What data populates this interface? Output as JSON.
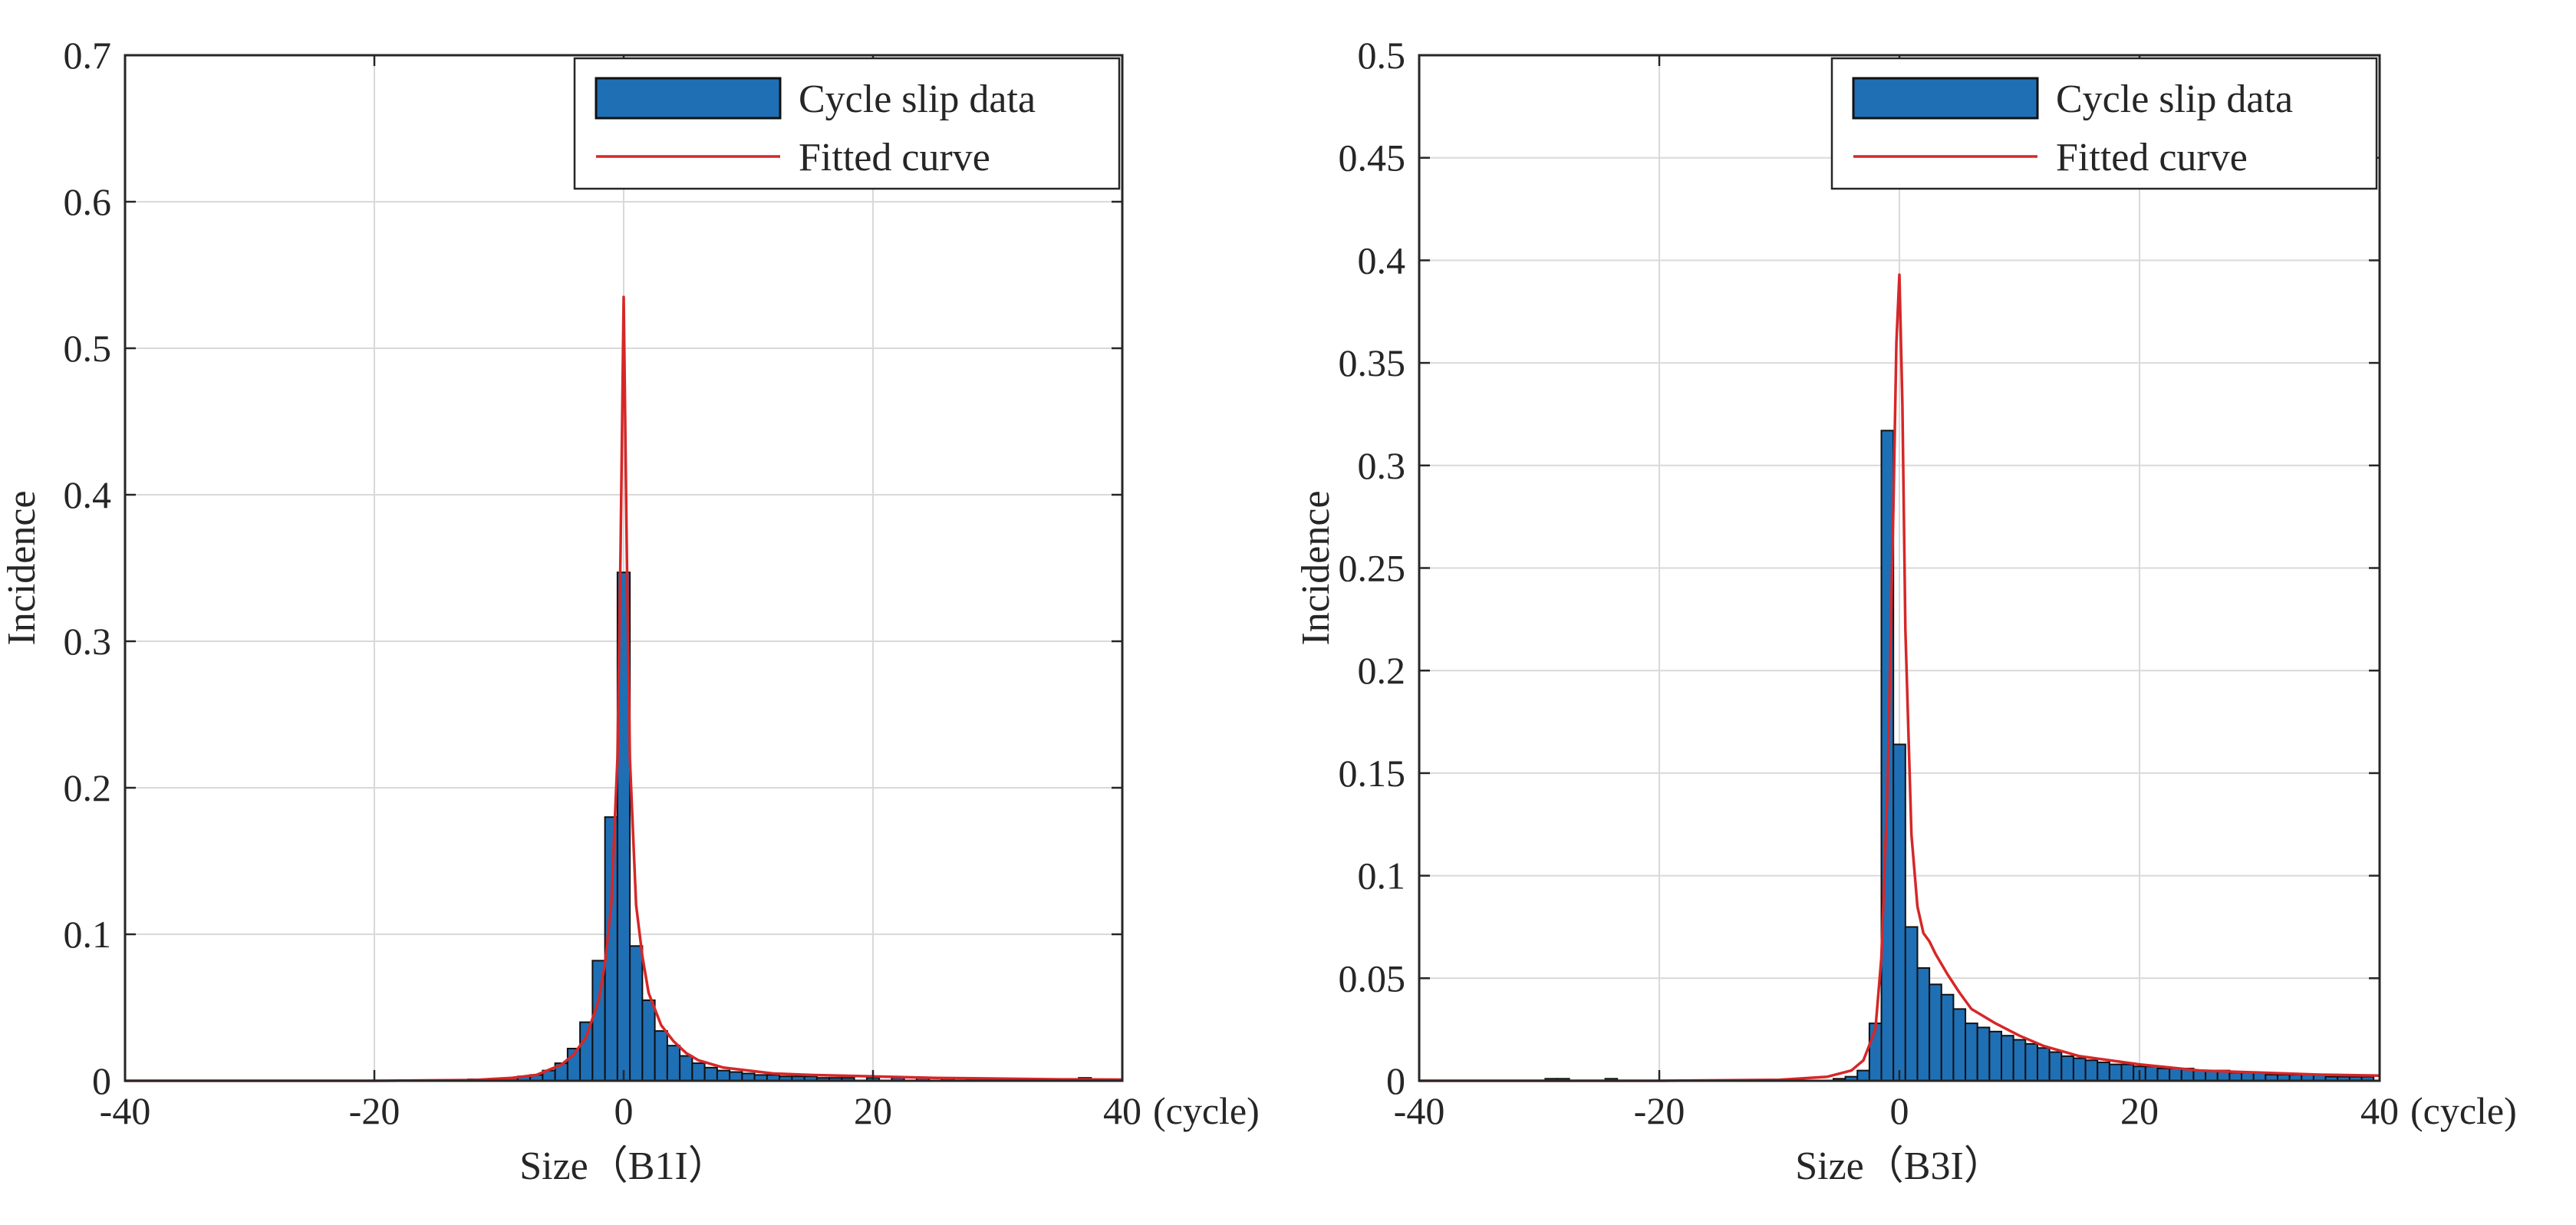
{
  "colors": {
    "bar_fill": "#1f6fb5",
    "bar_edge": "#111111",
    "fit_line": "#d62728",
    "axis": "#262626",
    "grid": "#d9d9d9"
  },
  "chart_data": [
    {
      "type": "bar",
      "title": "",
      "xlabel": "Size（B1I）",
      "ylabel": "Incidence",
      "x_unit": "(cycle)",
      "xlim": [
        -40,
        40
      ],
      "ylim": [
        0,
        0.7
      ],
      "xticks": [
        -40,
        -20,
        0,
        20,
        40
      ],
      "yticks": [
        0,
        0.1,
        0.2,
        0.3,
        0.4,
        0.5,
        0.6,
        0.7
      ],
      "xtick_labels": [
        "-40",
        "-20",
        "0",
        "20",
        "40"
      ],
      "ytick_labels": [
        "0",
        "0.1",
        "0.2",
        "0.3",
        "0.4",
        "0.5",
        "0.6",
        "0.7"
      ],
      "grid": true,
      "legend_position": "top-right",
      "bar_width": 1,
      "series": [
        {
          "name": "Cycle slip data",
          "type": "bar",
          "x": [
            -12,
            -10,
            -9,
            -8,
            -7,
            -6,
            -5,
            -4,
            -3,
            -2,
            -1,
            0,
            1,
            2,
            3,
            4,
            5,
            6,
            7,
            8,
            9,
            10,
            11,
            12,
            13,
            14,
            15,
            16,
            17,
            18,
            20,
            22,
            24,
            26,
            28,
            30,
            37
          ],
          "values": [
            0.001,
            0.001,
            0.002,
            0.003,
            0.004,
            0.007,
            0.012,
            0.022,
            0.04,
            0.082,
            0.18,
            0.347,
            0.092,
            0.055,
            0.034,
            0.024,
            0.017,
            0.012,
            0.009,
            0.007,
            0.006,
            0.005,
            0.004,
            0.004,
            0.003,
            0.003,
            0.003,
            0.002,
            0.002,
            0.002,
            0.002,
            0.002,
            0.002,
            0.002,
            0.001,
            0.001,
            0.002
          ]
        },
        {
          "name": "Fitted curve",
          "type": "line",
          "x": [
            -40,
            -20,
            -12,
            -9,
            -7,
            -5,
            -4,
            -3,
            -2,
            -1.5,
            -1,
            -0.5,
            -0.25,
            0,
            0.25,
            0.5,
            1,
            1.5,
            2,
            3,
            4,
            5,
            6,
            8,
            10,
            12,
            15,
            20,
            25,
            30,
            35,
            40
          ],
          "values": [
            0,
            0,
            0.0005,
            0.002,
            0.004,
            0.011,
            0.018,
            0.03,
            0.055,
            0.08,
            0.12,
            0.22,
            0.36,
            0.535,
            0.36,
            0.22,
            0.12,
            0.085,
            0.06,
            0.038,
            0.027,
            0.019,
            0.014,
            0.009,
            0.007,
            0.005,
            0.004,
            0.003,
            0.002,
            0.0015,
            0.001,
            0.0008
          ]
        }
      ]
    },
    {
      "type": "bar",
      "title": "",
      "xlabel": "Size（B3I）",
      "ylabel": "Incidence",
      "x_unit": "(cycle)",
      "xlim": [
        -40,
        40
      ],
      "ylim": [
        0,
        0.5
      ],
      "xticks": [
        -40,
        -20,
        0,
        20,
        40
      ],
      "yticks": [
        0,
        0.05,
        0.1,
        0.15,
        0.2,
        0.25,
        0.3,
        0.35,
        0.4,
        0.45,
        0.5
      ],
      "xtick_labels": [
        "-40",
        "-20",
        "0",
        "20",
        "40"
      ],
      "ytick_labels": [
        "0",
        "0.05",
        "0.1",
        "0.15",
        "0.2",
        "0.25",
        "0.3",
        "0.35",
        "0.4",
        "0.45",
        "0.5"
      ],
      "grid": true,
      "legend_position": "top-right",
      "bar_width": 1,
      "series": [
        {
          "name": "Cycle slip data",
          "type": "bar",
          "x": [
            -29,
            -28,
            -24,
            -5,
            -4,
            -3,
            -2,
            -1,
            0,
            1,
            2,
            3,
            4,
            5,
            6,
            7,
            8,
            9,
            10,
            11,
            12,
            13,
            14,
            15,
            16,
            17,
            18,
            19,
            20,
            21,
            22,
            23,
            24,
            25,
            26,
            27,
            28,
            29,
            30,
            31,
            32,
            33,
            34,
            35,
            36,
            37,
            38,
            39
          ],
          "values": [
            0.001,
            0.001,
            0.001,
            0.001,
            0.002,
            0.005,
            0.028,
            0.317,
            0.164,
            0.075,
            0.055,
            0.047,
            0.042,
            0.035,
            0.028,
            0.026,
            0.024,
            0.022,
            0.02,
            0.018,
            0.016,
            0.014,
            0.012,
            0.011,
            0.01,
            0.009,
            0.008,
            0.008,
            0.007,
            0.007,
            0.006,
            0.006,
            0.006,
            0.005,
            0.005,
            0.005,
            0.004,
            0.004,
            0.004,
            0.003,
            0.003,
            0.003,
            0.003,
            0.003,
            0.002,
            0.002,
            0.002,
            0.002
          ]
        },
        {
          "name": "Fitted curve",
          "type": "line",
          "x": [
            -40,
            -20,
            -10,
            -6,
            -4,
            -3,
            -2,
            -1.5,
            -1,
            -0.5,
            -0.25,
            0,
            0.25,
            0.5,
            1,
            1.5,
            2,
            2.5,
            3,
            4,
            5,
            6,
            8,
            10,
            12,
            15,
            20,
            25,
            30,
            35,
            40
          ],
          "values": [
            0,
            0,
            0.0005,
            0.002,
            0.005,
            0.01,
            0.025,
            0.06,
            0.14,
            0.28,
            0.36,
            0.393,
            0.33,
            0.22,
            0.12,
            0.085,
            0.072,
            0.068,
            0.062,
            0.052,
            0.043,
            0.035,
            0.028,
            0.022,
            0.017,
            0.012,
            0.008,
            0.005,
            0.004,
            0.003,
            0.0025
          ]
        }
      ]
    }
  ]
}
